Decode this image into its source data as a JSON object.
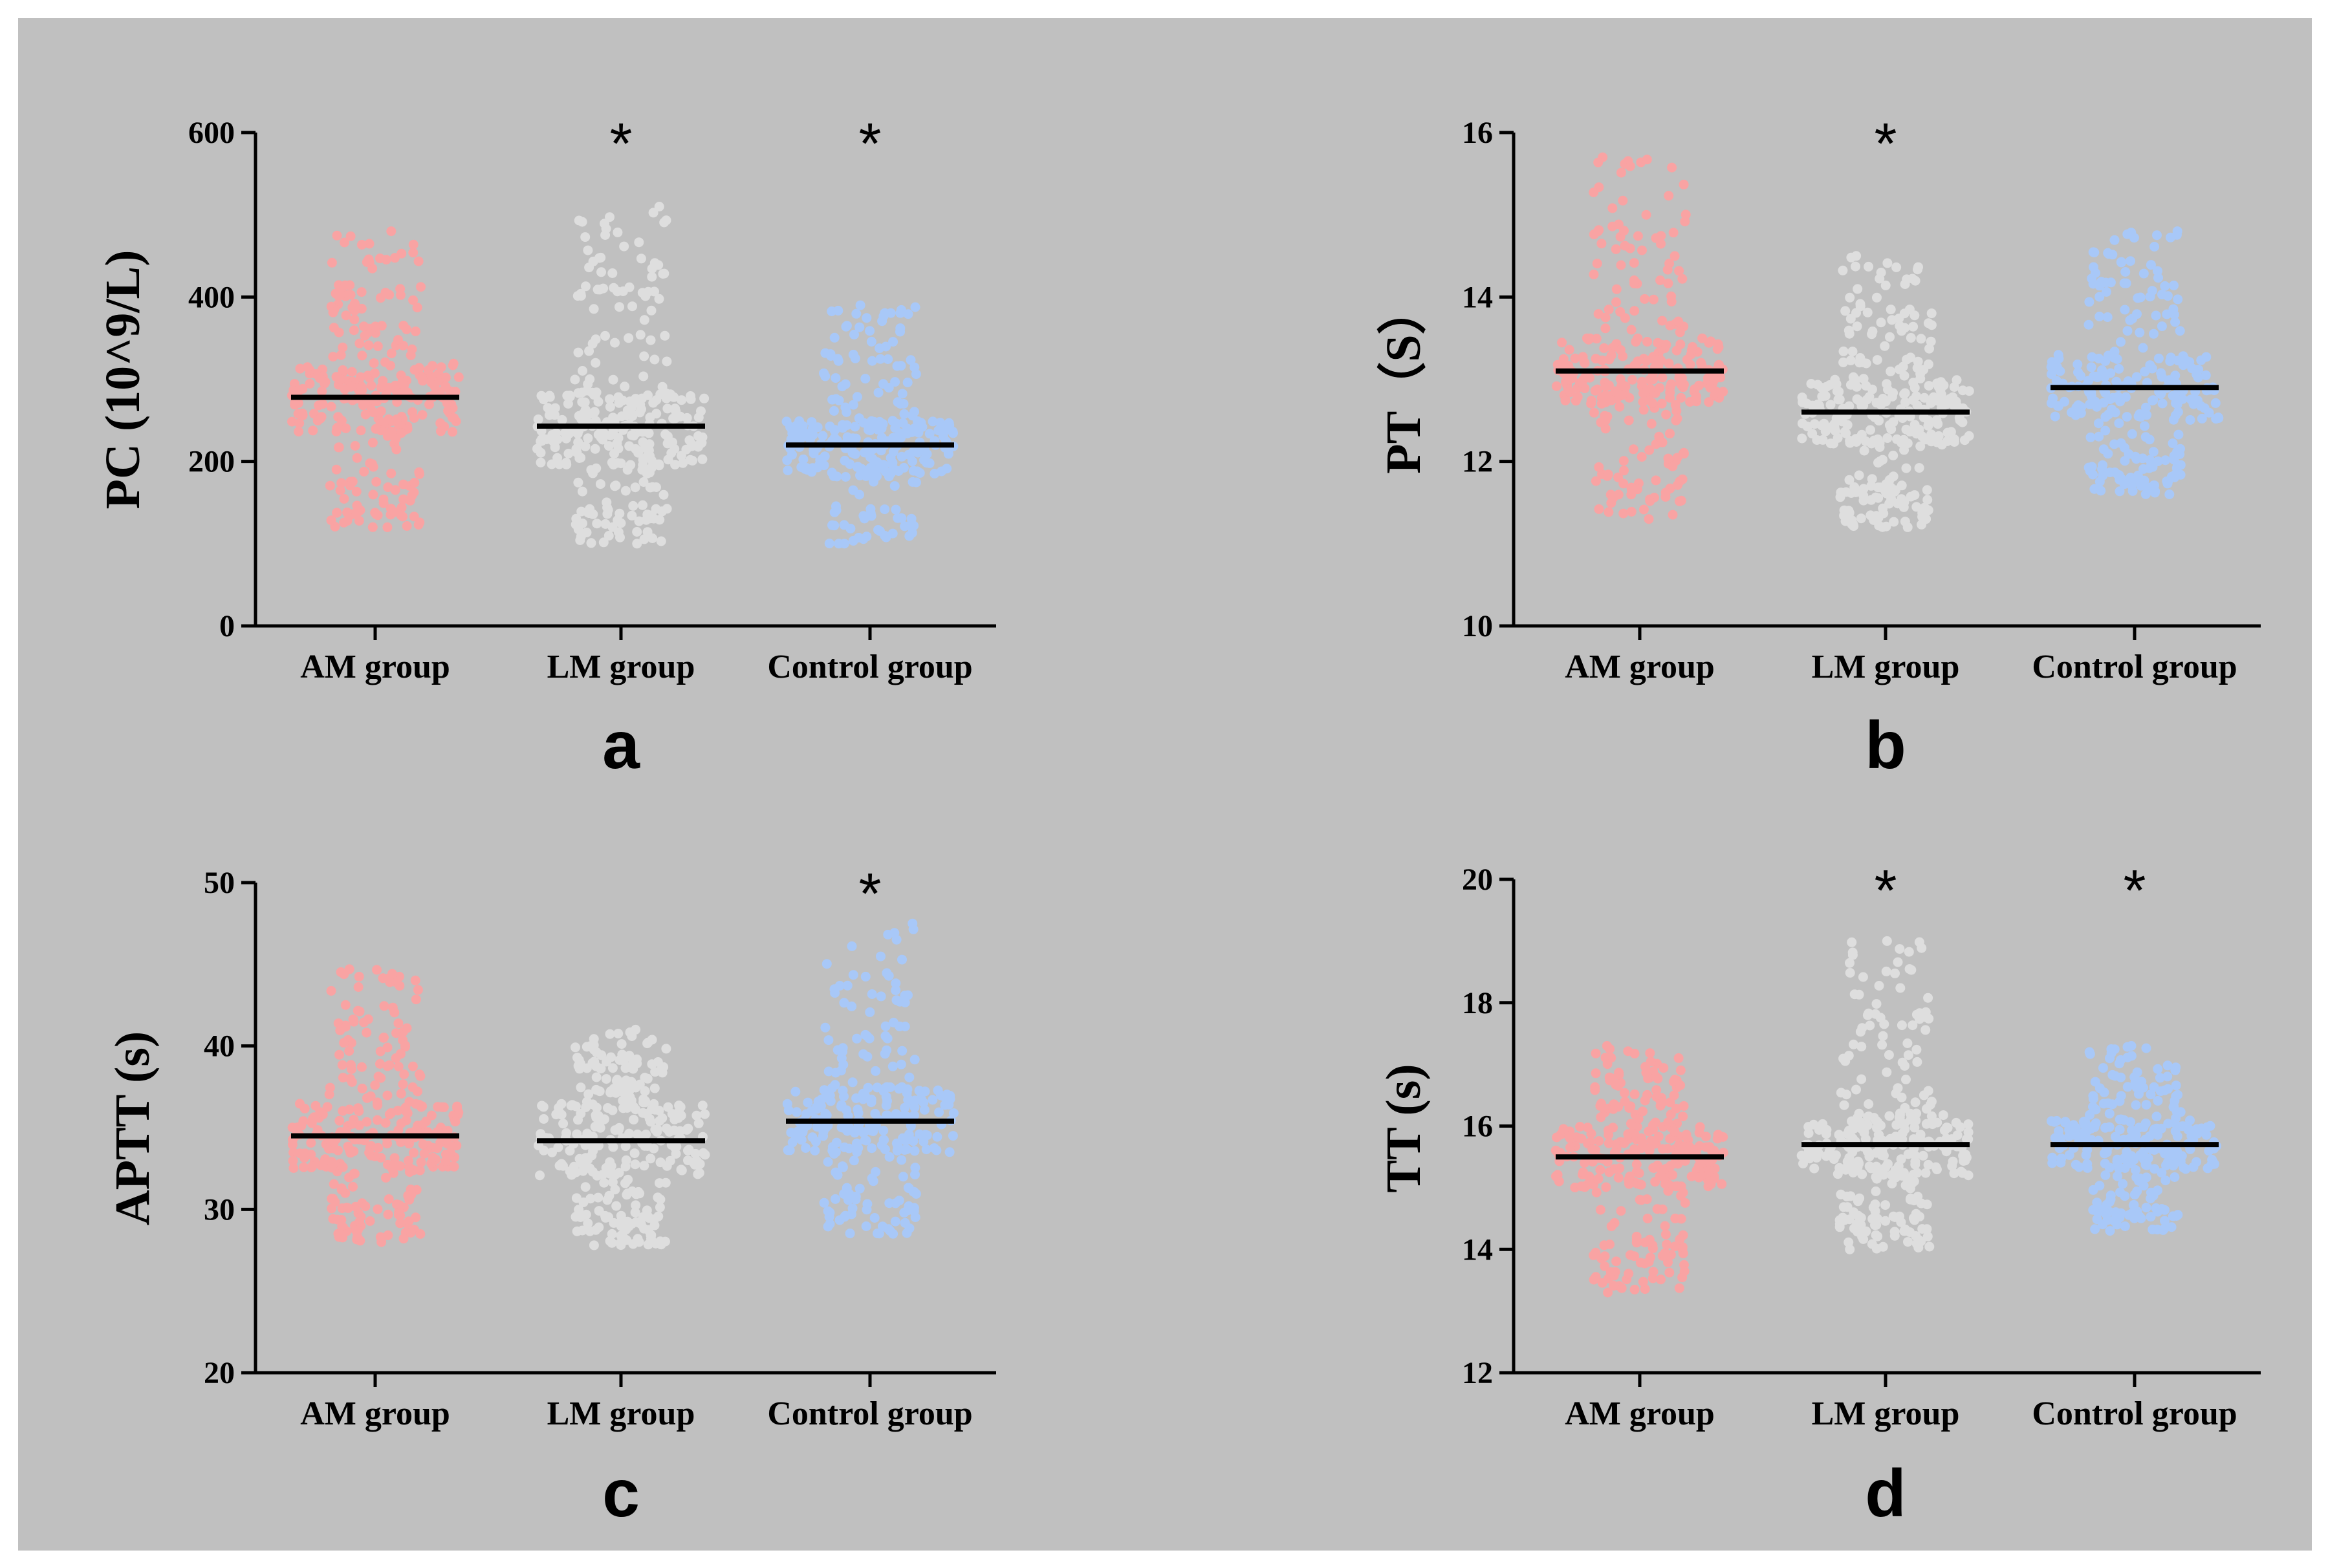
{
  "background_color": "#c0c0c0",
  "chart_data": [
    {
      "id": "a",
      "type": "scatter",
      "panel_label": "a",
      "ylabel": "PC (10^9/L)",
      "ylim": [
        0,
        600
      ],
      "yticks": [
        0,
        200,
        400,
        600
      ],
      "categories": [
        "AM group",
        "LM group",
        "Control group"
      ],
      "colors": [
        "#f9a3a3",
        "#dedede",
        "#a8c8f8"
      ],
      "means": [
        278,
        243,
        220
      ],
      "significant": [
        false,
        true,
        true
      ],
      "significance_marker": "*",
      "distributions": [
        {
          "min": 120,
          "max": 480,
          "q1": 235,
          "q3": 320,
          "n": 320
        },
        {
          "min": 100,
          "max": 510,
          "q1": 195,
          "q3": 285,
          "n": 330
        },
        {
          "min": 100,
          "max": 390,
          "q1": 185,
          "q3": 250,
          "n": 290
        }
      ]
    },
    {
      "id": "b",
      "type": "scatter",
      "panel_label": "b",
      "ylabel": "PT（S）",
      "ylim": [
        10,
        16
      ],
      "yticks": [
        10,
        12,
        14,
        16
      ],
      "categories": [
        "AM group",
        "LM group",
        "Control group"
      ],
      "colors": [
        "#f9a3a3",
        "#dedede",
        "#a8c8f8"
      ],
      "means": [
        13.1,
        12.6,
        12.9
      ],
      "significant": [
        false,
        true,
        false
      ],
      "significance_marker": "*",
      "distributions": [
        {
          "min": 11.3,
          "max": 15.7,
          "q1": 12.7,
          "q3": 13.5,
          "n": 320
        },
        {
          "min": 11.2,
          "max": 14.5,
          "q1": 12.2,
          "q3": 13.0,
          "n": 330
        },
        {
          "min": 11.6,
          "max": 14.8,
          "q1": 12.5,
          "q3": 13.3,
          "n": 290
        }
      ]
    },
    {
      "id": "c",
      "type": "scatter",
      "panel_label": "c",
      "ylabel": "APTT (s)",
      "ylim": [
        20,
        50
      ],
      "yticks": [
        20,
        30,
        40,
        50
      ],
      "categories": [
        "AM group",
        "LM group",
        "Control group"
      ],
      "colors": [
        "#f9a3a3",
        "#dedede",
        "#a8c8f8"
      ],
      "means": [
        34.5,
        34.2,
        35.4
      ],
      "significant": [
        false,
        false,
        true
      ],
      "significance_marker": "*",
      "distributions": [
        {
          "min": 28,
          "max": 44.7,
          "q1": 32.5,
          "q3": 36.5,
          "n": 320
        },
        {
          "min": 27.8,
          "max": 41,
          "q1": 32,
          "q3": 36.5,
          "n": 330
        },
        {
          "min": 28.5,
          "max": 47.5,
          "q1": 33.5,
          "q3": 37.5,
          "n": 290
        }
      ]
    },
    {
      "id": "d",
      "type": "scatter",
      "panel_label": "d",
      "ylabel": "TT (s)",
      "ylim": [
        12,
        20
      ],
      "yticks": [
        12,
        14,
        16,
        18,
        20
      ],
      "categories": [
        "AM group",
        "LM group",
        "Control group"
      ],
      "colors": [
        "#f9a3a3",
        "#dedede",
        "#a8c8f8"
      ],
      "means": [
        15.5,
        15.7,
        15.7
      ],
      "significant": [
        false,
        true,
        true
      ],
      "significance_marker": "*",
      "distributions": [
        {
          "min": 13.3,
          "max": 17.3,
          "q1": 15.0,
          "q3": 16.0,
          "n": 320
        },
        {
          "min": 14.0,
          "max": 19.0,
          "q1": 15.2,
          "q3": 16.2,
          "n": 330
        },
        {
          "min": 14.3,
          "max": 17.3,
          "q1": 15.3,
          "q3": 16.1,
          "n": 290
        }
      ]
    }
  ]
}
